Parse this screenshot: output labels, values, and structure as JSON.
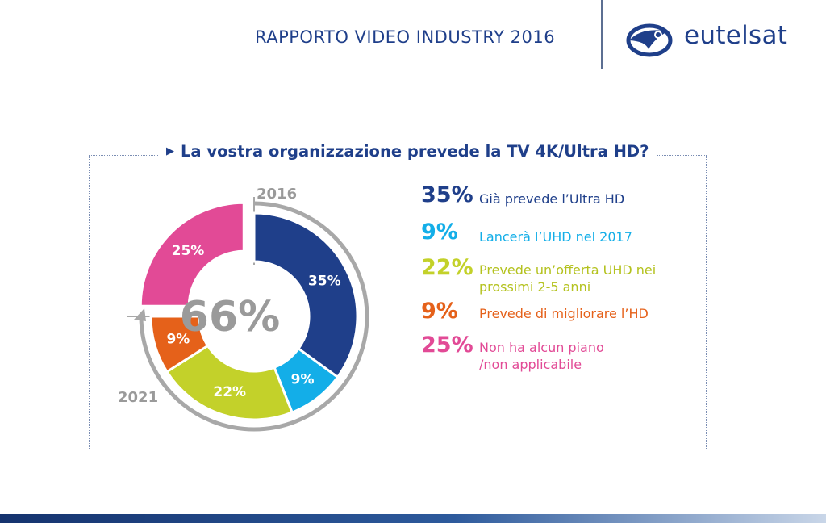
{
  "header": {
    "title": "RAPPORTO VIDEO INDUSTRY 2016",
    "brand": "eutelsat"
  },
  "colors": {
    "navy": "#1f3f8a",
    "cyan": "#13aee8",
    "lime": "#c3d12a",
    "orange": "#e5611a",
    "pink": "#e24a96",
    "gray": "#9a9a9a"
  },
  "chart_data": {
    "type": "pie",
    "title": "La vostra organizzazione prevede la TV 4K/Ultra HD?",
    "center_label": "66%",
    "start_label": "2016",
    "end_label": "2021",
    "slices": [
      {
        "value": 35,
        "label": "35%",
        "legend_pct": "35%",
        "legend": "Già prevede l’Ultra HD",
        "color": "#1f3f8a"
      },
      {
        "value": 9,
        "label": "9%",
        "legend_pct": "9%",
        "legend": "Lancerà l’UHD nel 2017",
        "color": "#13aee8"
      },
      {
        "value": 22,
        "label": "22%",
        "legend_pct": "22%",
        "legend": "Prevede un’offerta UHD nei prossimi 2-5 anni",
        "color": "#c3d12a"
      },
      {
        "value": 9,
        "label": "9%",
        "legend_pct": "9%",
        "legend": "Prevede di migliorare l’HD",
        "color": "#e5611a"
      },
      {
        "value": 25,
        "label": "25%",
        "legend_pct": "25%",
        "legend": "Non ha alcun piano /non applicabile",
        "color": "#e24a96"
      }
    ]
  }
}
